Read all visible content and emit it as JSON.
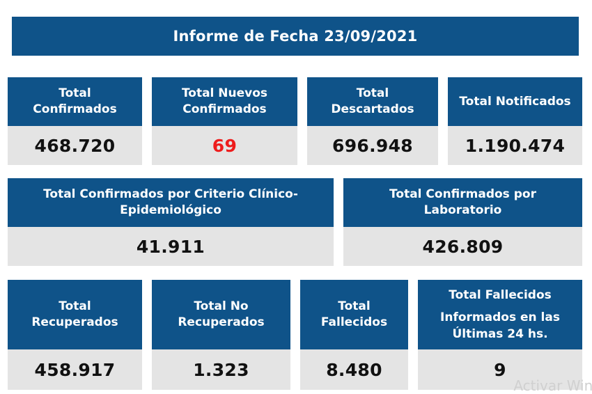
{
  "banner": {
    "title": "Informe de Fecha 23/09/2021"
  },
  "row1": [
    {
      "label_lines": [
        "Total",
        "Confirmados"
      ],
      "value": "468.720"
    },
    {
      "label_lines": [
        "Total Nuevos",
        "Confirmados"
      ],
      "value": "69",
      "value_color": "#ee1c1c"
    },
    {
      "label_lines": [
        "Total",
        "Descartados"
      ],
      "value": "696.948"
    },
    {
      "label_lines": [
        "Total Notificados"
      ],
      "value": "1.190.474"
    }
  ],
  "row2": [
    {
      "label_lines": [
        "Total Confirmados por Criterio Clínico-",
        "Epidemiológico"
      ],
      "value": "41.911"
    },
    {
      "label_lines": [
        "Total Confirmados por",
        "Laboratorio"
      ],
      "value": "426.809"
    }
  ],
  "row3": [
    {
      "label_lines": [
        "Total",
        "Recuperados"
      ],
      "value": "458.917"
    },
    {
      "label_lines": [
        "Total No",
        "Recuperados"
      ],
      "value": "1.323"
    },
    {
      "label_lines": [
        "Total",
        "Fallecidos"
      ],
      "value": "8.480"
    },
    {
      "label_lines": [
        "Total Fallecidos",
        "Informados en las",
        "Últimas 24 hs."
      ],
      "value": "9"
    }
  ],
  "watermark": "Activar Wind",
  "colors": {
    "header_blue": "#0f5389",
    "value_bg": "#e4e4e4",
    "highlight_red": "#ee1c1c"
  }
}
